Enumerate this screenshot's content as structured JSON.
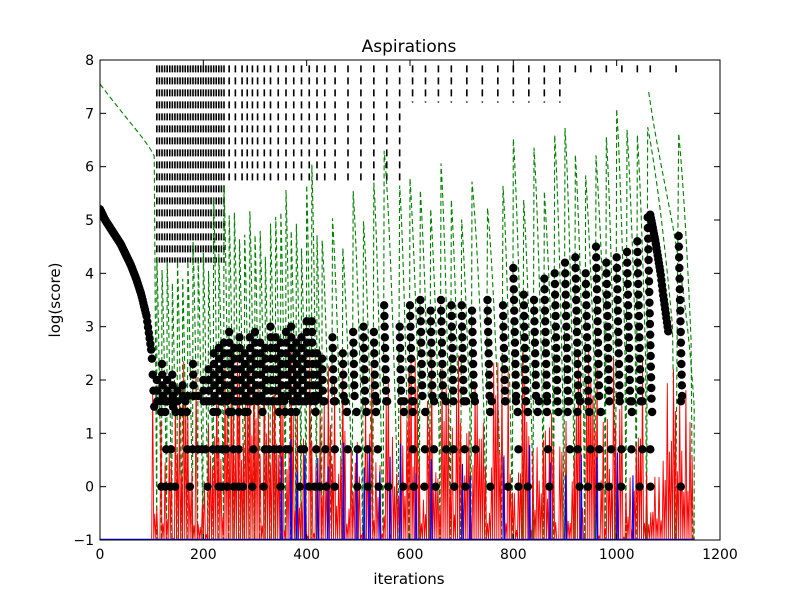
{
  "chart_data": {
    "type": "line",
    "title": "Aspirations",
    "xlabel": "iterations",
    "ylabel": "log(score)",
    "xlim": [
      0,
      1200
    ],
    "ylim": [
      -1,
      8
    ],
    "xticks": [
      0,
      200,
      400,
      600,
      800,
      1000,
      1200
    ],
    "yticks": [
      -1,
      0,
      1,
      2,
      3,
      4,
      5,
      6,
      7,
      8
    ],
    "grid": false,
    "legend": "none",
    "colors": {
      "score_markers": "#000000",
      "aspiration_dashed": "#008000",
      "red_series": "#ff0000",
      "blue_series": "#0000ff",
      "marks": "#000000"
    },
    "decay_segment": {
      "x": [
        0,
        10,
        20,
        30,
        40,
        50,
        60,
        70,
        80,
        90,
        100,
        105
      ],
      "y": [
        5.2,
        5.0,
        4.85,
        4.7,
        4.55,
        4.35,
        4.15,
        3.9,
        3.6,
        3.2,
        2.5,
        1.5
      ]
    },
    "late_decay_segment": {
      "x": [
        1065,
        1070,
        1075,
        1080,
        1085,
        1090,
        1095,
        1100
      ],
      "y": [
        5.1,
        4.85,
        4.6,
        4.3,
        4.0,
        3.6,
        3.25,
        2.9
      ]
    },
    "restart_peaks": {
      "x": [
        110,
        120,
        130,
        140,
        150,
        160,
        170,
        180,
        190,
        200,
        210,
        220,
        230,
        240,
        250,
        260,
        270,
        280,
        290,
        300,
        310,
        320,
        330,
        340,
        350,
        360,
        370,
        380,
        390,
        400,
        410,
        420,
        430,
        450,
        470,
        490,
        510,
        530,
        550,
        580,
        600,
        620,
        640,
        660,
        680,
        700,
        720,
        750,
        780,
        800,
        820,
        840,
        860,
        880,
        900,
        920,
        940,
        960,
        980,
        1000,
        1020,
        1040,
        1060,
        1120
      ],
      "y": [
        2.0,
        2.3,
        2.0,
        2.1,
        1.8,
        1.9,
        1.7,
        2.3,
        1.7,
        2.0,
        2.2,
        2.5,
        2.6,
        2.7,
        2.9,
        2.6,
        2.8,
        2.5,
        2.8,
        2.9,
        2.7,
        2.6,
        3.0,
        2.8,
        2.7,
        2.9,
        3.0,
        2.7,
        2.8,
        3.1,
        3.1,
        2.5,
        2.4,
        2.8,
        2.5,
        2.9,
        3.0,
        2.9,
        3.4,
        3.0,
        3.4,
        3.5,
        3.3,
        3.5,
        3.4,
        3.4,
        3.3,
        3.5,
        3.4,
        4.1,
        3.6,
        3.5,
        3.9,
        4.0,
        4.2,
        4.3,
        4.0,
        4.5,
        4.2,
        4.3,
        4.4,
        4.6,
        5.05,
        4.7
      ]
    },
    "levels": [
      1.6,
      1.4,
      0.7,
      0.0
    ]
  }
}
